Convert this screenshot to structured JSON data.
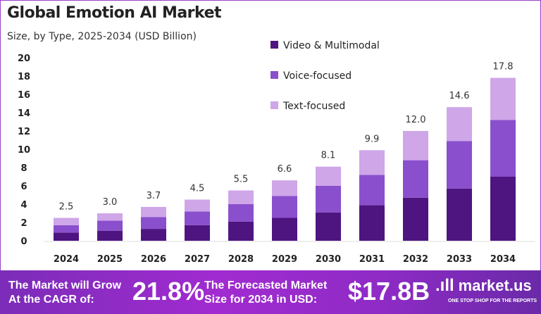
{
  "chart_data": {
    "type": "bar",
    "stacked": true,
    "title": "Global Emotion AI Market",
    "subtitle": "Size, by Type, 2025-2034 (USD Billion)",
    "categories": [
      "2024",
      "2025",
      "2026",
      "2027",
      "2028",
      "2029",
      "2030",
      "2031",
      "2032",
      "2033",
      "2034"
    ],
    "series": [
      {
        "name": "Video & Multimodal",
        "color": "#4e1580",
        "values": [
          0.9,
          1.1,
          1.3,
          1.7,
          2.1,
          2.5,
          3.1,
          3.9,
          4.7,
          5.7,
          7.0
        ]
      },
      {
        "name": "Voice-focused",
        "color": "#8a4fcc",
        "values": [
          0.8,
          1.1,
          1.3,
          1.5,
          1.9,
          2.4,
          2.9,
          3.3,
          4.1,
          5.2,
          6.2
        ]
      },
      {
        "name": "Text-focused",
        "color": "#cfa6e8",
        "values": [
          0.8,
          0.8,
          1.1,
          1.3,
          1.5,
          1.7,
          2.1,
          2.7,
          3.2,
          3.7,
          4.6
        ]
      }
    ],
    "totals": [
      "2.5",
      "3.0",
      "3.7",
      "4.5",
      "5.5",
      "6.6",
      "8.1",
      "9.9",
      "12.0",
      "14.6",
      "17.8"
    ],
    "yticks": [
      "0",
      "2",
      "4",
      "6",
      "8",
      "10",
      "12",
      "14",
      "16",
      "18",
      "20"
    ],
    "ylim": [
      0,
      20
    ],
    "grid": false,
    "legend": "top-center"
  },
  "footer": {
    "cagr_label": "The Market will Grow At the CAGR of:",
    "cagr_value": "21.8%",
    "forecast_label": "The Forecasted Market Size for 2034 in USD:",
    "forecast_value": "$17.8B",
    "logo_text": "market.us",
    "logo_tagline": "ONE STOP SHOP FOR THE REPORTS"
  }
}
